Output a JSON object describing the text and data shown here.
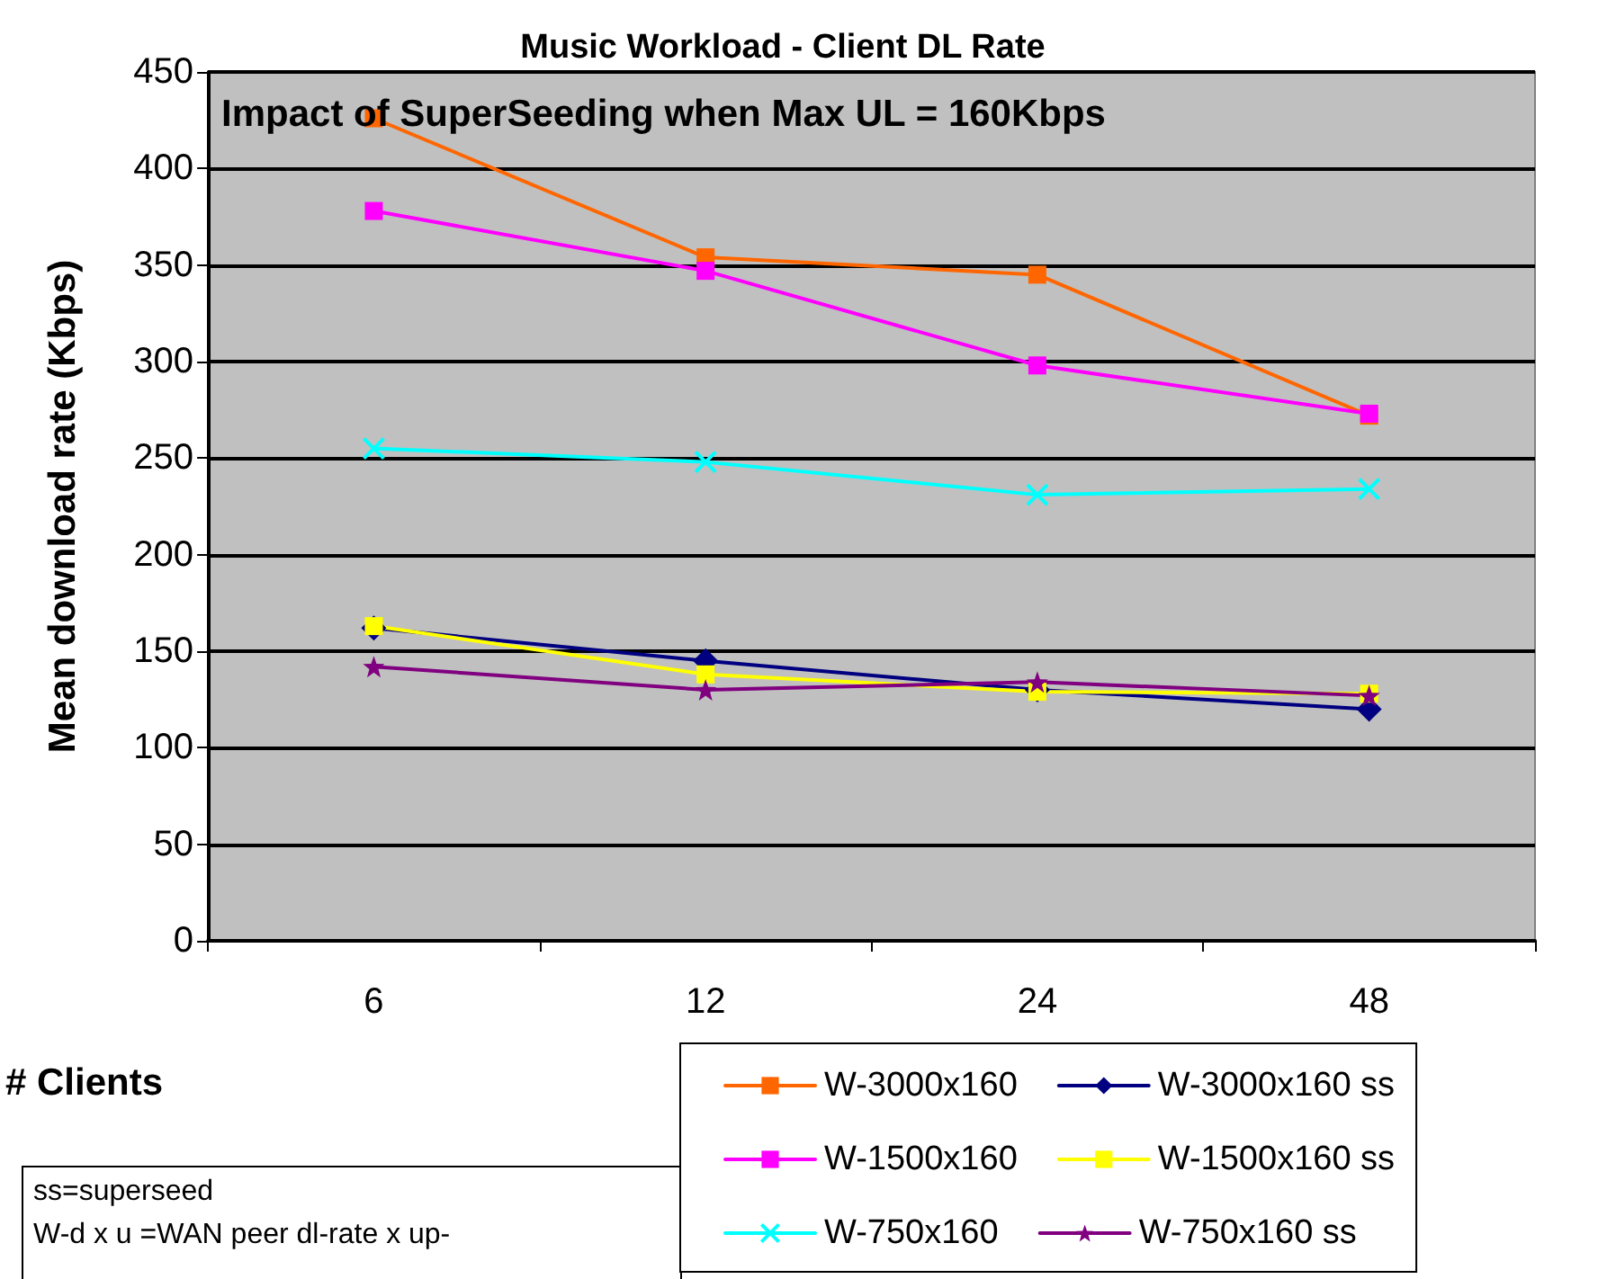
{
  "chart_data": {
    "type": "line",
    "title": "Music Workload - Client DL Rate",
    "subtitle": "Impact of SuperSeeding when Max UL = 160Kbps",
    "xlabel": "# Clients",
    "ylabel": "Mean download rate (Kbps)",
    "categories": [
      "6",
      "12",
      "24",
      "48"
    ],
    "series": [
      {
        "name": "W-3000x160",
        "color": "#ff6600",
        "marker": "square",
        "values": [
          426,
          354,
          345,
          272
        ]
      },
      {
        "name": "W-3000x160 ss",
        "color": "#000080",
        "marker": "diamond",
        "values": [
          162,
          145,
          130,
          120
        ]
      },
      {
        "name": "W-1500x160",
        "color": "#ff00ff",
        "marker": "square",
        "values": [
          378,
          347,
          298,
          273
        ]
      },
      {
        "name": "W-1500x160 ss",
        "color": "#ffff00",
        "marker": "square",
        "values": [
          163,
          138,
          129,
          128
        ]
      },
      {
        "name": "W-750x160",
        "color": "#00ffff",
        "marker": "cross",
        "values": [
          255,
          248,
          231,
          234
        ]
      },
      {
        "name": "W-750x160 ss",
        "color": "#800080",
        "marker": "star",
        "values": [
          142,
          130,
          134,
          127
        ]
      }
    ],
    "ylim": [
      0,
      450
    ],
    "yticks": [
      0,
      50,
      100,
      150,
      200,
      250,
      300,
      350,
      400,
      450
    ],
    "grid": "y",
    "legend": "bottom right",
    "line_style": "solid",
    "annotations": [
      "ss=superseed",
      "W-d x u =WAN peer dl-rate x up-"
    ]
  }
}
